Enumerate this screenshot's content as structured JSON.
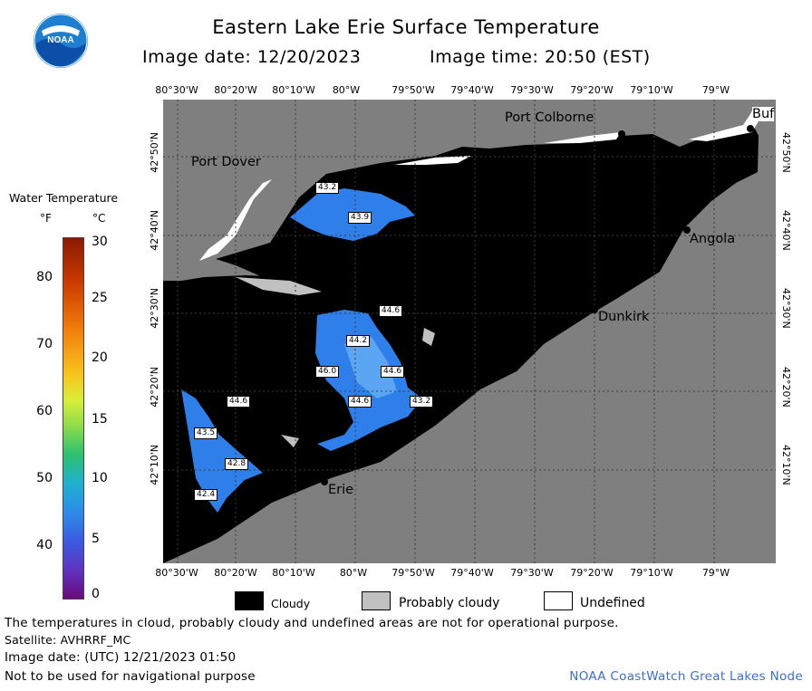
{
  "header": {
    "title": "Eastern Lake Erie Surface Temperature",
    "image_date": "Image date: 12/20/2023",
    "image_time": "Image time: 20:50 (EST)"
  },
  "logo": {
    "text": "NOAA",
    "icon": "noaa-logo-icon"
  },
  "axes": {
    "lon_ticks": [
      "80°30'W",
      "80°20'W",
      "80°10'W",
      "80°W",
      "79°50'W",
      "79°40'W",
      "79°30'W",
      "79°20'W",
      "79°10'W",
      "79°W"
    ],
    "lat_ticks": [
      "42°50'N",
      "42°40'N",
      "42°30'N",
      "42°20'N",
      "42°10'N"
    ]
  },
  "places": {
    "port_colborne": "Port Colborne",
    "port_dover": "Port Dover",
    "buffalo": "Buf",
    "angola": "Angola",
    "dunkirk": "Dunkirk",
    "erie": "Erie"
  },
  "temperature_labels": [
    "43.2",
    "43.9",
    "44.6",
    "44.2",
    "46.0",
    "44.6",
    "44.6",
    "43.2",
    "44.6",
    "43.5",
    "42.8",
    "42.4"
  ],
  "colorbar": {
    "title": "Water Temperature",
    "unit_f": "°F",
    "unit_c": "°C",
    "f_ticks": [
      "80",
      "70",
      "60",
      "50",
      "40"
    ],
    "c_ticks": [
      "30",
      "25",
      "20",
      "15",
      "10",
      "5",
      "0"
    ]
  },
  "legend": {
    "cloudy": "Cloudy",
    "probably_cloudy": "Probably cloudy",
    "undefined": "Undefined",
    "colors": {
      "cloudy": "#000000",
      "probably_cloudy": "#c0c0c0",
      "undefined": "#ffffff",
      "land": "#7f7f7f"
    }
  },
  "footer": {
    "note": "The temperatures in cloud, probably cloudy and undefined areas are not for operational purpose.",
    "satellite": "Satellite: AVHRRF_MC",
    "utc_date": "Image date: (UTC) 12/21/2023  01:50",
    "nav_warning": "Not to be used for navigational purpose",
    "credit": "NOAA CoastWatch Great Lakes Node"
  }
}
